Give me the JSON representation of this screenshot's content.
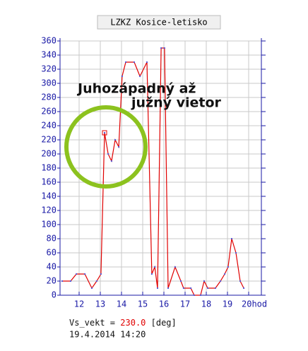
{
  "chart_data": {
    "type": "line",
    "title": "LZKZ Kosice-letisko",
    "annotations": [
      "Juhozápadný až",
      "južný vietor"
    ],
    "x": [
      11.2,
      11.6,
      11.87,
      12.27,
      12.6,
      12.83,
      13.03,
      13.2,
      13.37,
      13.53,
      13.7,
      13.87,
      14.03,
      14.2,
      14.6,
      14.87,
      15.2,
      15.43,
      15.57,
      15.7,
      15.87,
      16.03,
      16.2,
      16.53,
      16.8,
      16.93,
      17.27,
      17.43,
      17.73,
      17.9,
      18.07,
      18.43,
      18.67,
      18.87,
      19.03,
      19.2,
      19.4,
      19.6,
      19.77
    ],
    "series": [
      {
        "name": "Vs_vekt",
        "color": "#e00000",
        "marker_color": "#5a5ad6",
        "values": [
          20,
          20,
          30,
          30,
          10,
          20,
          30,
          230,
          200,
          190,
          220,
          210,
          310,
          330,
          330,
          310,
          330,
          30,
          40,
          10,
          350,
          350,
          10,
          40,
          20,
          10,
          10,
          0,
          0,
          20,
          10,
          10,
          20,
          30,
          40,
          80,
          60,
          20,
          10
        ]
      }
    ],
    "highlight_index": 7,
    "xlim": [
      11.1,
      20.6
    ],
    "xticks": [
      12,
      13,
      14,
      15,
      16,
      17,
      18,
      19,
      {
        "value": 20,
        "label": "20hod"
      }
    ],
    "ylim": [
      0,
      360
    ],
    "yticks": [
      0,
      20,
      40,
      60,
      80,
      100,
      120,
      140,
      160,
      180,
      200,
      220,
      240,
      260,
      280,
      300,
      320,
      340,
      360
    ],
    "grid": true,
    "readout": {
      "prefix": "Vs_vekt =",
      "value": "230.0",
      "unit": "[deg]",
      "timestamp": "19.4.2014 14:20"
    }
  }
}
